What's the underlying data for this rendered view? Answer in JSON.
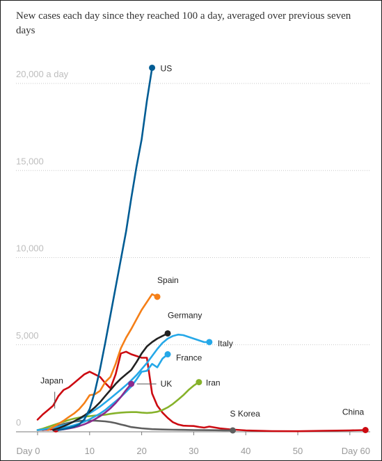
{
  "title": "New cases each day since they reached 100 a day, averaged over previous seven days",
  "chart_data": {
    "type": "line",
    "title": "New cases each day since they reached 100 a day, averaged over previous seven days",
    "xlabel": "",
    "ylabel": "",
    "xlim": [
      -0.5,
      63
    ],
    "ylim": [
      0,
      21000
    ],
    "grid": "horizontal dotted",
    "legend": "direct labels at line ends",
    "x_ticks": [
      {
        "value": 0,
        "label": "Day 0"
      },
      {
        "value": 10,
        "label": "10"
      },
      {
        "value": 20,
        "label": "20"
      },
      {
        "value": 30,
        "label": "30"
      },
      {
        "value": 40,
        "label": "40"
      },
      {
        "value": 50,
        "label": "50"
      },
      {
        "value": 60,
        "label": "Day 60"
      }
    ],
    "y_ticks": [
      {
        "value": 0,
        "label": "0"
      },
      {
        "value": 5000,
        "label": "5,000"
      },
      {
        "value": 10000,
        "label": "10,000"
      },
      {
        "value": 15000,
        "label": "15,000"
      },
      {
        "value": 20000,
        "label": "20,000 a day"
      }
    ],
    "series": [
      {
        "name": "China",
        "color": "#cc0a11",
        "x": [
          0,
          1,
          2,
          3,
          4,
          5,
          6,
          7,
          8,
          9,
          10,
          11,
          12,
          13,
          14,
          15,
          16,
          17,
          18,
          19,
          20,
          21,
          22,
          23,
          24,
          25,
          26,
          27,
          28,
          29,
          30,
          31,
          32,
          33,
          35,
          37,
          40,
          45,
          50,
          55,
          60,
          63
        ],
        "y": [
          700,
          1000,
          1250,
          1500,
          2050,
          2400,
          2550,
          2800,
          3050,
          3300,
          3450,
          3300,
          3150,
          2800,
          2500,
          3300,
          4500,
          4600,
          4450,
          4350,
          4250,
          4250,
          2200,
          1500,
          1100,
          800,
          550,
          420,
          350,
          340,
          330,
          280,
          240,
          300,
          200,
          140,
          80,
          40,
          30,
          60,
          80,
          100
        ]
      },
      {
        "name": "S Korea",
        "color": "#5e5e5e",
        "x": [
          1,
          2,
          3,
          4,
          5,
          6,
          7,
          8,
          9,
          10,
          11,
          12,
          13,
          14,
          15,
          16,
          17,
          18,
          20,
          22,
          24,
          26,
          28,
          30,
          32,
          34,
          36,
          37.5
        ],
        "y": [
          100,
          170,
          250,
          350,
          450,
          520,
          580,
          620,
          640,
          640,
          640,
          620,
          600,
          560,
          500,
          420,
          350,
          270,
          200,
          150,
          130,
          120,
          110,
          100,
          95,
          90,
          85,
          80
        ]
      },
      {
        "name": "Japan",
        "color": "#cc0a11",
        "x": [
          0,
          1,
          2,
          3,
          3.5
        ],
        "y": [
          100,
          115,
          125,
          135,
          140
        ]
      },
      {
        "name": "Iran",
        "color": "#86b22a",
        "x": [
          0,
          1,
          2,
          3,
          4,
          5,
          6,
          7,
          8,
          9,
          10,
          11,
          12,
          13,
          14,
          15,
          16,
          17,
          18,
          19,
          20,
          21,
          22,
          23,
          24,
          25,
          26,
          27,
          28,
          29,
          30,
          31
        ],
        "y": [
          100,
          180,
          280,
          380,
          480,
          580,
          680,
          760,
          820,
          870,
          900,
          930,
          950,
          980,
          1030,
          1070,
          1100,
          1120,
          1130,
          1130,
          1100,
          1080,
          1100,
          1150,
          1250,
          1400,
          1600,
          1850,
          2100,
          2400,
          2650,
          2850
        ]
      },
      {
        "name": "Italy",
        "color": "#25a8e8",
        "x": [
          0,
          1,
          2,
          3,
          4,
          5,
          6,
          7,
          8,
          9,
          10,
          11,
          12,
          13,
          14,
          15,
          16,
          17,
          18,
          19,
          20,
          21,
          22,
          23,
          24,
          25,
          26,
          27,
          28,
          29,
          30,
          31,
          32,
          33
        ],
        "y": [
          100,
          130,
          170,
          230,
          300,
          380,
          470,
          580,
          720,
          880,
          1060,
          1250,
          1450,
          1680,
          1920,
          2170,
          2420,
          2680,
          2950,
          3250,
          3600,
          3950,
          4350,
          4750,
          5100,
          5350,
          5500,
          5580,
          5550,
          5450,
          5350,
          5250,
          5150,
          5150
        ]
      },
      {
        "name": "France",
        "color": "#25a8e8",
        "x": [
          3,
          4,
          5,
          6,
          7,
          8,
          9,
          10,
          11,
          12,
          13,
          14,
          15,
          16,
          17,
          18,
          19,
          20,
          21,
          22,
          23,
          24,
          25
        ],
        "y": [
          100,
          160,
          230,
          300,
          380,
          470,
          580,
          720,
          880,
          1050,
          1250,
          1500,
          1750,
          2000,
          2300,
          2600,
          3000,
          3450,
          3500,
          3900,
          3700,
          4200,
          4450
        ]
      },
      {
        "name": "Germany",
        "color": "#222222",
        "x": [
          3,
          4,
          5,
          6,
          7,
          8,
          9,
          10,
          11,
          12,
          13,
          14,
          15,
          16,
          17,
          18,
          19,
          20,
          21,
          22,
          23,
          24,
          25
        ],
        "y": [
          100,
          200,
          320,
          450,
          600,
          760,
          940,
          1150,
          1400,
          1700,
          2050,
          2400,
          2750,
          3050,
          3300,
          3550,
          4000,
          4500,
          4900,
          5150,
          5350,
          5500,
          5650
        ]
      },
      {
        "name": "UK",
        "color": "#8a2b8e",
        "x": [
          4,
          5,
          6,
          7,
          8,
          9,
          10,
          11,
          12,
          13,
          14,
          15,
          16,
          17,
          18
        ],
        "y": [
          100,
          140,
          190,
          250,
          330,
          430,
          560,
          720,
          900,
          1100,
          1350,
          1650,
          2000,
          2400,
          2750
        ]
      },
      {
        "name": "Spain",
        "color": "#f57f17",
        "x": [
          2,
          3,
          4,
          5,
          6,
          7,
          8,
          9,
          10,
          11,
          12,
          13,
          14,
          15,
          16,
          17,
          18,
          19,
          20,
          21,
          22,
          23
        ],
        "y": [
          100,
          280,
          450,
          640,
          850,
          1050,
          1300,
          1650,
          2100,
          2150,
          2350,
          2850,
          3150,
          3900,
          4800,
          5400,
          5900,
          6450,
          7000,
          7450,
          7900,
          7750
        ]
      },
      {
        "name": "US",
        "color": "#005c94",
        "x": [
          4,
          5,
          6,
          7,
          8,
          9,
          10,
          11,
          12,
          13,
          14,
          15,
          16,
          17,
          18,
          19,
          20,
          21,
          22
        ],
        "y": [
          100,
          150,
          220,
          300,
          420,
          720,
          1300,
          2300,
          3600,
          5100,
          6700,
          8300,
          9900,
          11500,
          13400,
          15200,
          16800,
          19000,
          20900
        ]
      }
    ]
  }
}
